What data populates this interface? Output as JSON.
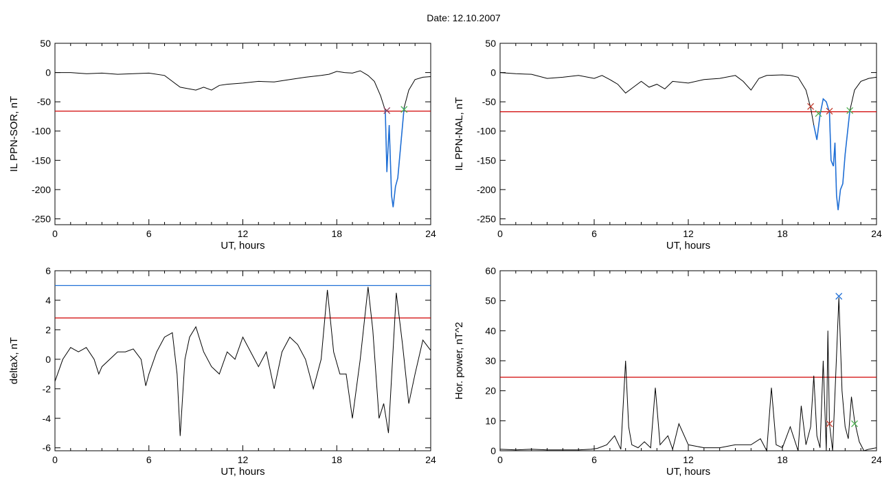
{
  "page": {
    "title": "Date:  12.10.2007"
  },
  "colors": {
    "trace": "#000000",
    "threshold_red": "#d00000",
    "threshold_blue": "#1f6fd6",
    "highlight": "#1f6fd6",
    "marker_red": "#c0392b",
    "marker_green": "#4caf50",
    "marker_blue": "#1f6fd6"
  },
  "chart_data": [
    {
      "type": "line",
      "xlabel": "UT, hours",
      "ylabel": "IL PPN-SOR, nT",
      "xlim": [
        0,
        24
      ],
      "ylim": [
        -260,
        50
      ],
      "xticks": [
        "0",
        "6",
        "12",
        "18",
        "24"
      ],
      "yticks": [
        "50",
        "0",
        "-50",
        "-100",
        "-150",
        "-200",
        "-250"
      ],
      "yticks_values": [
        50,
        0,
        -50,
        -100,
        -150,
        -200,
        -250
      ],
      "threshold_red": -66,
      "x": [
        0,
        1,
        2,
        3,
        4,
        5,
        6,
        7,
        7.5,
        8,
        9,
        9.5,
        10,
        10.5,
        11,
        12,
        13,
        14,
        15,
        16,
        17,
        17.5,
        18,
        18.5,
        19,
        19.5,
        20,
        20.4,
        20.8,
        21.1,
        21.2,
        21.35,
        21.5,
        21.6,
        21.75,
        21.9,
        22.1,
        22.3,
        22.6,
        23,
        23.5,
        24
      ],
      "values": [
        0,
        0,
        -2,
        -1,
        -3,
        -2,
        -1,
        -5,
        -15,
        -25,
        -30,
        -25,
        -30,
        -22,
        -20,
        -18,
        -15,
        -16,
        -12,
        -8,
        -5,
        -3,
        2,
        0,
        -1,
        3,
        -5,
        -15,
        -40,
        -65,
        -170,
        -90,
        -210,
        -230,
        -195,
        -180,
        -120,
        -60,
        -30,
        -12,
        -8,
        -7
      ],
      "highlight_range": [
        21.1,
        22.3
      ],
      "markers": [
        {
          "x": 21.2,
          "y": -65,
          "color": "#8e3a5a"
        },
        {
          "x": 22.3,
          "y": -63,
          "color": "#4caf50"
        }
      ]
    },
    {
      "type": "line",
      "xlabel": "UT, hours",
      "ylabel": "IL PPN-NAL, nT",
      "xlim": [
        0,
        24
      ],
      "ylim": [
        -260,
        50
      ],
      "xticks": [
        "0",
        "6",
        "12",
        "18",
        "24"
      ],
      "yticks": [
        "50",
        "0",
        "-50",
        "-100",
        "-150",
        "-200",
        "-250"
      ],
      "yticks_values": [
        50,
        0,
        -50,
        -100,
        -150,
        -200,
        -250
      ],
      "threshold_red": -67,
      "x": [
        0,
        1,
        2,
        3,
        4,
        5,
        6,
        6.5,
        7,
        7.5,
        8,
        8.5,
        9,
        9.5,
        10,
        10.5,
        11,
        12,
        13,
        14,
        15,
        15.5,
        16,
        16.5,
        17,
        18,
        18.5,
        19,
        19.5,
        19.8,
        20,
        20.2,
        20.4,
        20.6,
        20.8,
        21,
        21.1,
        21.25,
        21.35,
        21.45,
        21.55,
        21.7,
        21.85,
        22,
        22.3,
        22.6,
        23,
        23.5,
        24
      ],
      "values": [
        0,
        -2,
        -3,
        -10,
        -8,
        -5,
        -10,
        -5,
        -12,
        -20,
        -35,
        -25,
        -15,
        -25,
        -20,
        -28,
        -15,
        -18,
        -12,
        -10,
        -5,
        -15,
        -30,
        -10,
        -5,
        -4,
        -5,
        -8,
        -30,
        -60,
        -90,
        -115,
        -72,
        -45,
        -50,
        -68,
        -150,
        -160,
        -120,
        -210,
        -235,
        -200,
        -190,
        -140,
        -65,
        -30,
        -15,
        -10,
        -8
      ],
      "highlight_range": [
        19.9,
        22.3
      ],
      "markers": [
        {
          "x": 19.8,
          "y": -58,
          "color": "#c0392b"
        },
        {
          "x": 20.3,
          "y": -70,
          "color": "#4caf50"
        },
        {
          "x": 21.0,
          "y": -66,
          "color": "#c0392b"
        },
        {
          "x": 22.3,
          "y": -65,
          "color": "#4caf50"
        }
      ]
    },
    {
      "type": "line",
      "xlabel": "UT, hours",
      "ylabel": "deltaX, nT",
      "xlim": [
        0,
        24
      ],
      "ylim": [
        -6.2,
        6
      ],
      "xticks": [
        "0",
        "6",
        "12",
        "18",
        "24"
      ],
      "yticks": [
        "6",
        "4",
        "2",
        "0",
        "-2",
        "-4",
        "-6"
      ],
      "yticks_values": [
        6,
        4,
        2,
        0,
        -2,
        -4,
        -6
      ],
      "threshold_red": 2.8,
      "threshold_blue": 5.0,
      "x": [
        0,
        0.5,
        1,
        1.5,
        2,
        2.5,
        2.8,
        3,
        3.5,
        4,
        4.5,
        5,
        5.5,
        5.8,
        6,
        6.5,
        7,
        7.5,
        7.8,
        8,
        8.3,
        8.6,
        9,
        9.5,
        10,
        10.5,
        11,
        11.5,
        12,
        12.5,
        13,
        13.5,
        14,
        14.5,
        15,
        15.5,
        16,
        16.5,
        17,
        17.4,
        17.8,
        18.2,
        18.6,
        19,
        19.5,
        20,
        20.3,
        20.7,
        21,
        21.3,
        21.8,
        22.2,
        22.6,
        23,
        23.5,
        24
      ],
      "values": [
        -1.5,
        0,
        0.8,
        0.5,
        0.8,
        0,
        -1,
        -0.5,
        0,
        0.5,
        0.5,
        0.7,
        0,
        -1.8,
        -1,
        0.5,
        1.5,
        1.8,
        -1,
        -5.2,
        0,
        1.5,
        2.2,
        0.5,
        -0.5,
        -1,
        0.5,
        0,
        1.5,
        0.5,
        -0.5,
        0.5,
        -2,
        0.5,
        1.5,
        1,
        0,
        -2,
        0,
        4.7,
        0.5,
        -1,
        -1,
        -4,
        0,
        4.9,
        2,
        -4,
        -3,
        -5,
        4.5,
        1,
        -3,
        -1,
        1.3,
        0.6
      ]
    },
    {
      "type": "line",
      "xlabel": "UT, hours",
      "ylabel": "Hor. power, nT^2",
      "xlim": [
        0,
        24
      ],
      "ylim": [
        0,
        60
      ],
      "xticks": [
        "0",
        "6",
        "12",
        "18",
        "24"
      ],
      "yticks": [
        "60",
        "50",
        "40",
        "30",
        "20",
        "10",
        "0"
      ],
      "yticks_values": [
        60,
        50,
        40,
        30,
        20,
        10,
        0
      ],
      "threshold_red": 24.5,
      "x": [
        0,
        1,
        2,
        3,
        4,
        5,
        5.8,
        6.2,
        6.8,
        7.3,
        7.7,
        8,
        8.2,
        8.4,
        8.8,
        9.2,
        9.6,
        9.9,
        10.2,
        10.7,
        11,
        11.4,
        12,
        13,
        14,
        15,
        16,
        16.6,
        17,
        17.3,
        17.6,
        18,
        18.5,
        19,
        19.2,
        19.5,
        19.8,
        20,
        20.2,
        20.4,
        20.6,
        20.8,
        20.9,
        21,
        21.2,
        21.4,
        21.6,
        21.8,
        22,
        22.2,
        22.4,
        22.6,
        22.9,
        23.2,
        23.5,
        24
      ],
      "values": [
        0.5,
        0.3,
        0.5,
        0.3,
        0.3,
        0.3,
        0.5,
        0.8,
        2,
        5,
        0.5,
        30,
        8,
        2,
        1,
        3,
        1,
        21,
        2,
        5,
        0.5,
        9,
        2,
        1,
        1,
        2,
        2,
        4,
        0,
        21,
        2,
        1,
        8,
        0,
        15,
        2,
        8,
        25,
        5,
        1,
        30,
        0,
        40,
        9,
        0,
        25,
        51,
        20,
        8,
        4,
        18,
        10,
        3,
        0,
        0.5,
        1
      ],
      "markers": [
        {
          "x": 21.0,
          "y": 9,
          "color": "#c0392b"
        },
        {
          "x": 21.6,
          "y": 51.5,
          "color": "#1f6fd6"
        },
        {
          "x": 22.6,
          "y": 9,
          "color": "#4caf50"
        }
      ]
    }
  ]
}
